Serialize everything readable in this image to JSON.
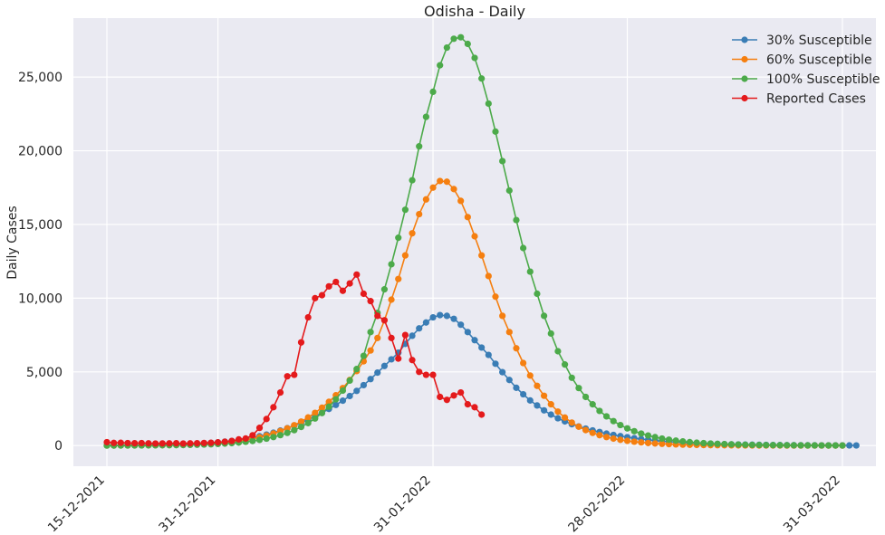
{
  "chart_data": {
    "type": "line",
    "title": "Odisha - Daily",
    "xlabel": "",
    "ylabel": "Daily Cases",
    "x_axis": {
      "type": "date",
      "start": "2021-12-15",
      "end": "2022-03-31",
      "tick_dates": [
        "2021-12-15",
        "2021-12-31",
        "2022-01-31",
        "2022-02-28",
        "2022-03-31"
      ],
      "tick_labels": [
        "15-12-2021",
        "31-12-2021",
        "31-01-2022",
        "28-02-2022",
        "31-03-2022"
      ]
    },
    "ylim": [
      -1400,
      29000
    ],
    "y_ticks": [
      0,
      5000,
      10000,
      15000,
      20000,
      25000
    ],
    "y_tick_labels": [
      "0",
      "5,000",
      "10,000",
      "15,000",
      "20,000",
      "25,000"
    ],
    "grid": true,
    "legend_position": "top-right",
    "series": [
      {
        "name": "30% Susceptible",
        "color": "#3a7db5",
        "start": "2021-12-15",
        "values": [
          10,
          13,
          16,
          20,
          24,
          29,
          35,
          42,
          51,
          61,
          73,
          88,
          106,
          127,
          152,
          183,
          220,
          264,
          316,
          378,
          450,
          535,
          633,
          745,
          873,
          1017,
          1178,
          1355,
          1549,
          1759,
          1985,
          2227,
          2485,
          2757,
          3046,
          3360,
          3710,
          4100,
          4510,
          4950,
          5400,
          5850,
          6300,
          6900,
          7450,
          7950,
          8350,
          8700,
          8850,
          8800,
          8600,
          8200,
          7700,
          7150,
          6650,
          6150,
          5550,
          4980,
          4450,
          3920,
          3480,
          3060,
          2720,
          2390,
          2100,
          1850,
          1640,
          1450,
          1300,
          1150,
          1030,
          920,
          810,
          720,
          640,
          570,
          500,
          440,
          390,
          340,
          300,
          265,
          235,
          205,
          180,
          160,
          140,
          125,
          110,
          97,
          86,
          76,
          67,
          59,
          52,
          46,
          40,
          36,
          32,
          28,
          25,
          22,
          20,
          17,
          15,
          14,
          12,
          11,
          10
        ]
      },
      {
        "name": "60% Susceptible",
        "color": "#f57f10",
        "start": "2021-12-15",
        "values": [
          5,
          6,
          8,
          10,
          12,
          15,
          19,
          24,
          30,
          37,
          46,
          57,
          70,
          87,
          108,
          133,
          165,
          203,
          250,
          307,
          376,
          459,
          559,
          678,
          818,
          981,
          1169,
          1384,
          1629,
          1907,
          2221,
          2574,
          2969,
          3411,
          3902,
          4448,
          5052,
          5718,
          6450,
          7300,
          8500,
          9900,
          11300,
          12900,
          14400,
          15700,
          16700,
          17500,
          17950,
          17900,
          17400,
          16600,
          15500,
          14200,
          12900,
          11500,
          10100,
          8800,
          7700,
          6600,
          5600,
          4750,
          4050,
          3380,
          2800,
          2300,
          1900,
          1560,
          1280,
          1050,
          860,
          705,
          578,
          474,
          389,
          319,
          262,
          215,
          176,
          144,
          118,
          97,
          80,
          65,
          54,
          44,
          36,
          30,
          24,
          20,
          16,
          13,
          11,
          9,
          7,
          6,
          5,
          4,
          3,
          3,
          2,
          2,
          2,
          1,
          1,
          1,
          1
        ]
      },
      {
        "name": "100% Susceptible",
        "color": "#4caa4a",
        "start": "2021-12-15",
        "values": [
          3,
          4,
          5,
          6,
          8,
          10,
          12,
          15,
          19,
          24,
          30,
          37,
          46,
          57,
          71,
          88,
          109,
          135,
          167,
          206,
          254,
          313,
          385,
          472,
          578,
          706,
          860,
          1045,
          1265,
          1527,
          1838,
          2205,
          2636,
          3141,
          3729,
          4410,
          5193,
          6090,
          7700,
          9000,
          10600,
          12300,
          14100,
          16000,
          18000,
          20300,
          22300,
          24000,
          25800,
          27000,
          27600,
          27700,
          27250,
          26300,
          24900,
          23200,
          21300,
          19300,
          17300,
          15300,
          13400,
          11800,
          10300,
          8800,
          7600,
          6400,
          5500,
          4600,
          3900,
          3300,
          2800,
          2350,
          1980,
          1660,
          1390,
          1165,
          975,
          816,
          683,
          571,
          478,
          400,
          335,
          280,
          234,
          196,
          164,
          137,
          115,
          96,
          80,
          67,
          56,
          47,
          39,
          33,
          28,
          23,
          19,
          16,
          13,
          11,
          9,
          8,
          7,
          6,
          5
        ]
      },
      {
        "name": "Reported Cases",
        "color": "#e41a1c",
        "start": "2021-12-15",
        "values": [
          230,
          180,
          190,
          170,
          160,
          170,
          150,
          140,
          145,
          150,
          160,
          140,
          150,
          160,
          175,
          190,
          220,
          260,
          310,
          420,
          480,
          700,
          1200,
          1800,
          2600,
          3600,
          4700,
          4800,
          7000,
          8700,
          10000,
          10200,
          10800,
          11100,
          10500,
          11000,
          11600,
          10300,
          9800,
          8800,
          8500,
          7300,
          5900,
          7500,
          5800,
          5000,
          4800,
          4800,
          3300,
          3100,
          3400,
          3600,
          2800,
          2600,
          2100
        ]
      }
    ]
  }
}
